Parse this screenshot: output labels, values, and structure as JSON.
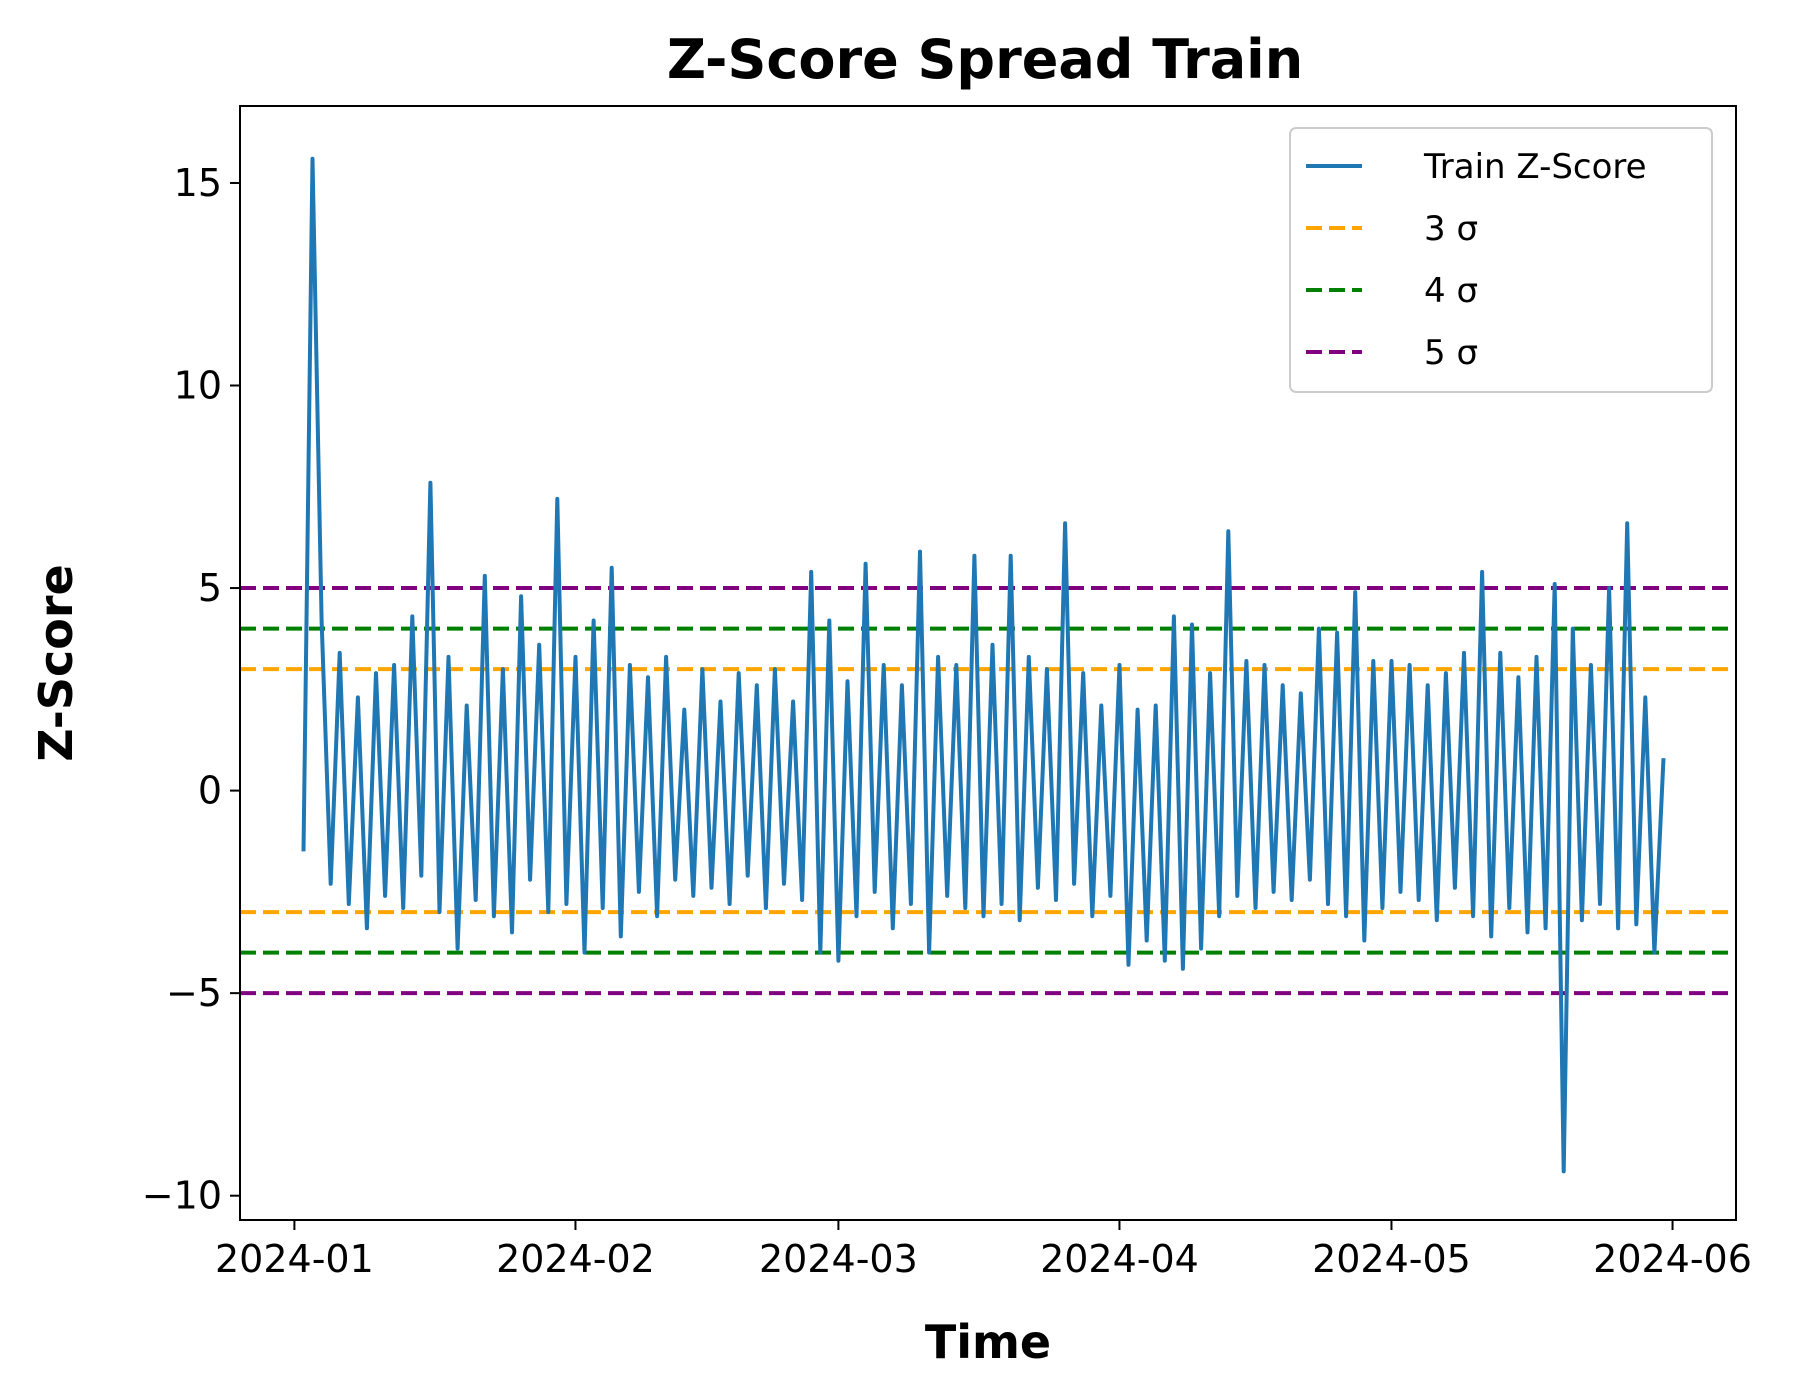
{
  "chart_data": {
    "type": "line",
    "title": "Z-Score Spread Train",
    "xlabel": "Time",
    "ylabel": "Z-Score",
    "xlim": [
      "2023-12-26",
      "2024-06-08"
    ],
    "ylim": [
      -10.6,
      16.9
    ],
    "x_ticks": [
      "2024-01",
      "2024-02",
      "2024-03",
      "2024-04",
      "2024-05",
      "2024-06"
    ],
    "y_ticks": [
      {
        "value": 15,
        "label": "15"
      },
      {
        "value": 10,
        "label": "10"
      },
      {
        "value": 5,
        "label": "5"
      },
      {
        "value": 0,
        "label": "0"
      },
      {
        "value": -5,
        "label": "−5"
      },
      {
        "value": -10,
        "label": "−10"
      }
    ],
    "grid": false,
    "legend_position": "top-right",
    "series": [
      {
        "name": "Train Z-Score",
        "color": "#1f77b4",
        "style": "solid",
        "x": [
          "2024-01-02",
          "2024-01-03",
          "2024-01-04",
          "2024-01-05",
          "2024-01-06",
          "2024-01-07",
          "2024-01-08",
          "2024-01-09",
          "2024-01-10",
          "2024-01-11",
          "2024-01-12",
          "2024-01-13",
          "2024-01-14",
          "2024-01-15",
          "2024-01-16",
          "2024-01-17",
          "2024-01-18",
          "2024-01-19",
          "2024-01-20",
          "2024-01-21",
          "2024-01-22",
          "2024-01-23",
          "2024-01-24",
          "2024-01-25",
          "2024-01-26",
          "2024-01-27",
          "2024-01-28",
          "2024-01-29",
          "2024-01-30",
          "2024-01-31",
          "2024-02-01",
          "2024-02-02",
          "2024-02-03",
          "2024-02-04",
          "2024-02-05",
          "2024-02-06",
          "2024-02-07",
          "2024-02-08",
          "2024-02-09",
          "2024-02-10",
          "2024-02-11",
          "2024-02-12",
          "2024-02-13",
          "2024-02-14",
          "2024-02-15",
          "2024-02-16",
          "2024-02-17",
          "2024-02-18",
          "2024-02-19",
          "2024-02-20",
          "2024-02-21",
          "2024-02-22",
          "2024-02-23",
          "2024-02-24",
          "2024-02-25",
          "2024-02-26",
          "2024-02-27",
          "2024-02-28",
          "2024-02-29",
          "2024-03-01",
          "2024-03-02",
          "2024-03-03",
          "2024-03-04",
          "2024-03-05",
          "2024-03-06",
          "2024-03-07",
          "2024-03-08",
          "2024-03-09",
          "2024-03-10",
          "2024-03-11",
          "2024-03-12",
          "2024-03-13",
          "2024-03-14",
          "2024-03-15",
          "2024-03-16",
          "2024-03-17",
          "2024-03-18",
          "2024-03-19",
          "2024-03-20",
          "2024-03-21",
          "2024-03-22",
          "2024-03-23",
          "2024-03-24",
          "2024-03-25",
          "2024-03-26",
          "2024-03-27",
          "2024-03-28",
          "2024-03-29",
          "2024-03-30",
          "2024-03-31",
          "2024-04-01",
          "2024-04-02",
          "2024-04-03",
          "2024-04-04",
          "2024-04-05",
          "2024-04-06",
          "2024-04-07",
          "2024-04-08",
          "2024-04-09",
          "2024-04-10",
          "2024-04-11",
          "2024-04-12",
          "2024-04-13",
          "2024-04-14",
          "2024-04-15",
          "2024-04-16",
          "2024-04-17",
          "2024-04-18",
          "2024-04-19",
          "2024-04-20",
          "2024-04-21",
          "2024-04-22",
          "2024-04-23",
          "2024-04-24",
          "2024-04-25",
          "2024-04-26",
          "2024-04-27",
          "2024-04-28",
          "2024-04-29",
          "2024-04-30",
          "2024-05-01",
          "2024-05-02",
          "2024-05-03",
          "2024-05-04",
          "2024-05-05",
          "2024-05-06",
          "2024-05-07",
          "2024-05-08",
          "2024-05-09",
          "2024-05-10",
          "2024-05-11",
          "2024-05-12",
          "2024-05-13",
          "2024-05-14",
          "2024-05-15",
          "2024-05-16",
          "2024-05-17",
          "2024-05-18",
          "2024-05-19",
          "2024-05-20",
          "2024-05-21",
          "2024-05-22",
          "2024-05-23",
          "2024-05-24",
          "2024-05-25",
          "2024-05-26",
          "2024-05-27",
          "2024-05-28",
          "2024-05-29",
          "2024-05-30",
          "2024-05-31"
        ],
        "y": [
          -1.5,
          15.6,
          4.2,
          -2.3,
          3.4,
          -2.8,
          2.3,
          -3.4,
          2.9,
          -2.6,
          3.1,
          -2.9,
          4.3,
          -2.1,
          7.6,
          -3.0,
          3.3,
          -3.9,
          2.1,
          -2.7,
          5.3,
          -3.1,
          3.0,
          -3.5,
          4.8,
          -2.2,
          3.6,
          -3.0,
          7.2,
          -2.8,
          3.3,
          -4.0,
          4.2,
          -2.9,
          5.5,
          -3.6,
          3.1,
          -2.5,
          2.8,
          -3.1,
          3.3,
          -2.2,
          2.0,
          -2.6,
          3.0,
          -2.4,
          2.2,
          -2.8,
          2.9,
          -2.1,
          2.6,
          -2.9,
          3.0,
          -2.3,
          2.2,
          -2.7,
          5.4,
          -4.0,
          4.2,
          -4.2,
          2.7,
          -3.1,
          5.6,
          -2.5,
          3.1,
          -3.4,
          2.6,
          -2.8,
          5.9,
          -4.0,
          3.3,
          -2.6,
          3.1,
          -2.9,
          5.8,
          -3.1,
          3.6,
          -2.8,
          5.8,
          -3.2,
          3.3,
          -2.4,
          3.0,
          -2.7,
          6.6,
          -2.3,
          2.9,
          -3.1,
          2.1,
          -2.6,
          3.1,
          -4.3,
          2.0,
          -3.7,
          2.1,
          -4.2,
          4.3,
          -4.4,
          4.1,
          -3.9,
          2.9,
          -3.1,
          6.4,
          -2.6,
          3.2,
          -2.9,
          3.1,
          -2.5,
          2.6,
          -2.7,
          2.4,
          -2.2,
          4.0,
          -2.8,
          3.9,
          -3.1,
          4.9,
          -3.7,
          3.2,
          -2.9,
          3.2,
          -2.5,
          3.1,
          -2.7,
          2.6,
          -3.2,
          2.9,
          -2.4,
          3.4,
          -3.1,
          5.4,
          -3.6,
          3.4,
          -2.9,
          2.8,
          -3.5,
          3.3,
          -3.4,
          5.1,
          -9.4,
          4.0,
          -3.2,
          3.1,
          -2.8,
          5.0,
          -3.4,
          6.6,
          -3.3,
          2.3,
          -4.0,
          0.8
        ]
      },
      {
        "name": "3 σ",
        "color": "#ffa500",
        "style": "dashed",
        "y_values": [
          3,
          -3
        ]
      },
      {
        "name": "4 σ",
        "color": "#008000",
        "style": "dashed",
        "y_values": [
          4,
          -4
        ]
      },
      {
        "name": "5 σ",
        "color": "#800080",
        "style": "dashed",
        "y_values": [
          5,
          -5
        ]
      }
    ]
  }
}
